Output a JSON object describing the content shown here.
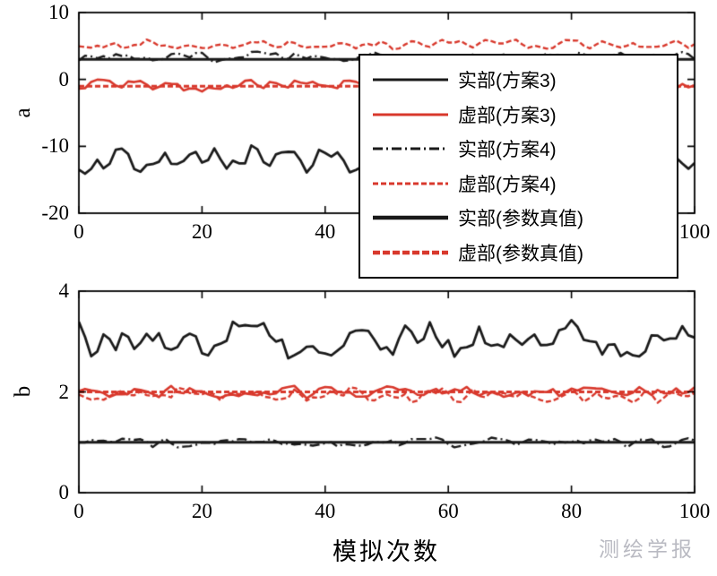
{
  "xlabel": "模拟次数",
  "watermark": "测绘学报",
  "colors": {
    "black": "#1a1a1a",
    "red": "#d8382c",
    "axis": "#000000",
    "watermark": "#b9bac2"
  },
  "chart_data": [
    {
      "type": "line",
      "ylabel": "a",
      "xlim": [
        0,
        100
      ],
      "ylim": [
        -20,
        10
      ],
      "xticks": [
        0,
        20,
        40,
        60,
        80,
        100
      ],
      "yticks": [
        10,
        0,
        -10,
        -20
      ],
      "grid": false,
      "n_points": 101,
      "series": [
        {
          "name": "实部(方案3)",
          "color": "#1a1a1a",
          "dash": "solid",
          "width": 2.8,
          "mean": -12.2,
          "amp": 2.3,
          "seed": 11
        },
        {
          "name": "虚部(方案3)",
          "color": "#d8382c",
          "dash": "solid",
          "width": 2.6,
          "mean": -1.05,
          "amp": 1.0,
          "seed": 23
        },
        {
          "name": "实部(方案4)",
          "color": "#1a1a1a",
          "dash": "dashdot",
          "width": 2.4,
          "mean": 3.4,
          "amp": 0.85,
          "seed": 37
        },
        {
          "name": "虚部(方案4)",
          "color": "#d8382c",
          "dash": "dashed",
          "width": 2.4,
          "mean": 5.2,
          "amp": 0.8,
          "seed": 49
        },
        {
          "name": "实部(参数真值)",
          "color": "#1a1a1a",
          "dash": "solid",
          "width": 3.0,
          "mean": 3.0,
          "amp": 0,
          "seed": 0
        },
        {
          "name": "虚部(参数真值)",
          "color": "#d8382c",
          "dash": "dashed",
          "width": 3.0,
          "mean": -1.0,
          "amp": 0,
          "seed": 0
        }
      ]
    },
    {
      "type": "line",
      "ylabel": "b",
      "xlim": [
        0,
        100
      ],
      "ylim": [
        0,
        4
      ],
      "xticks": [
        0,
        20,
        40,
        60,
        80,
        100
      ],
      "yticks": [
        4,
        2,
        0
      ],
      "grid": false,
      "n_points": 101,
      "series": [
        {
          "name": "实部(方案3)",
          "color": "#1a1a1a",
          "dash": "solid",
          "width": 2.8,
          "mean": 3.03,
          "amp": 0.4,
          "seed": 211
        },
        {
          "name": "虚部(方案3)",
          "color": "#d8382c",
          "dash": "solid",
          "width": 2.6,
          "mean": 2.0,
          "amp": 0.13,
          "seed": 223
        },
        {
          "name": "实部(方案4)",
          "color": "#1a1a1a",
          "dash": "dashdot",
          "width": 2.4,
          "mean": 1.0,
          "amp": 0.1,
          "seed": 237
        },
        {
          "name": "虚部(方案4)",
          "color": "#d8382c",
          "dash": "dashed",
          "width": 2.4,
          "mean": 1.93,
          "amp": 0.16,
          "seed": 249
        },
        {
          "name": "实部(参数真值)",
          "color": "#1a1a1a",
          "dash": "solid",
          "width": 3.0,
          "mean": 1.0,
          "amp": 0,
          "seed": 0
        },
        {
          "name": "虚部(参数真值)",
          "color": "#d8382c",
          "dash": "dashed",
          "width": 3.0,
          "mean": 2.0,
          "amp": 0,
          "seed": 0
        }
      ]
    }
  ],
  "legend": {
    "items": [
      {
        "label": "实部(方案3)",
        "color": "#1a1a1a",
        "dash": "solid",
        "width": 3
      },
      {
        "label": "虚部(方案3)",
        "color": "#d8382c",
        "dash": "solid",
        "width": 3
      },
      {
        "label": "实部(方案4)",
        "color": "#1a1a1a",
        "dash": "dashdot",
        "width": 3
      },
      {
        "label": "虚部(方案4)",
        "color": "#d8382c",
        "dash": "dashed",
        "width": 3
      },
      {
        "label": "实部(参数真值)",
        "color": "#1a1a1a",
        "dash": "solid",
        "width": 4.5
      },
      {
        "label": "虚部(参数真值)",
        "color": "#d8382c",
        "dash": "dashed-thick",
        "width": 4.5
      }
    ]
  }
}
